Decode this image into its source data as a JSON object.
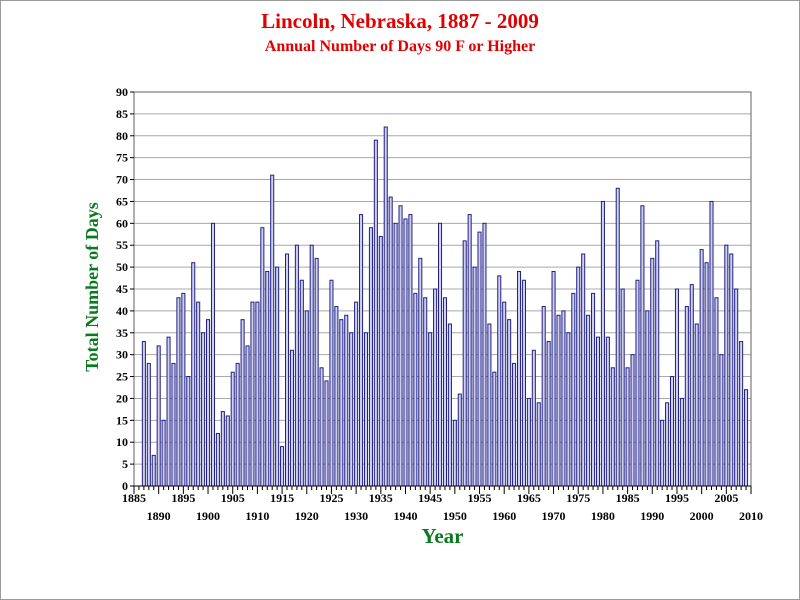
{
  "chart_data": {
    "type": "bar",
    "title": "Lincoln, Nebraska, 1887 - 2009",
    "subtitle": "Annual Number of Days 90 F or Higher",
    "xlabel": "Year",
    "ylabel": "Total Number of Days",
    "xlim": [
      1885,
      2010
    ],
    "ylim": [
      0,
      90
    ],
    "ytick_step": 5,
    "xtick_major": 5,
    "grid": "horizontal",
    "legend": "none",
    "colors": {
      "bar_fill": "#d0d0ec",
      "bar_stroke": "#202088",
      "title": "#e00000",
      "axis_title": "#0a7a1e"
    },
    "years": [
      1887,
      1888,
      1889,
      1890,
      1891,
      1892,
      1893,
      1894,
      1895,
      1896,
      1897,
      1898,
      1899,
      1900,
      1901,
      1902,
      1903,
      1904,
      1905,
      1906,
      1907,
      1908,
      1909,
      1910,
      1911,
      1912,
      1913,
      1914,
      1915,
      1916,
      1917,
      1918,
      1919,
      1920,
      1921,
      1922,
      1923,
      1924,
      1925,
      1926,
      1927,
      1928,
      1929,
      1930,
      1931,
      1932,
      1933,
      1934,
      1935,
      1936,
      1937,
      1938,
      1939,
      1940,
      1941,
      1942,
      1943,
      1944,
      1945,
      1946,
      1947,
      1948,
      1949,
      1950,
      1951,
      1952,
      1953,
      1954,
      1955,
      1956,
      1957,
      1958,
      1959,
      1960,
      1961,
      1962,
      1963,
      1964,
      1965,
      1966,
      1967,
      1968,
      1969,
      1970,
      1971,
      1972,
      1973,
      1974,
      1975,
      1976,
      1977,
      1978,
      1979,
      1980,
      1981,
      1982,
      1983,
      1984,
      1985,
      1986,
      1987,
      1988,
      1989,
      1990,
      1991,
      1992,
      1993,
      1994,
      1995,
      1996,
      1997,
      1998,
      1999,
      2000,
      2001,
      2002,
      2003,
      2004,
      2005,
      2006,
      2007,
      2008,
      2009
    ],
    "values": [
      33,
      28,
      7,
      32,
      15,
      34,
      28,
      43,
      44,
      25,
      51,
      42,
      35,
      38,
      60,
      12,
      17,
      16,
      26,
      28,
      38,
      32,
      42,
      42,
      59,
      49,
      71,
      50,
      9,
      53,
      31,
      55,
      47,
      40,
      55,
      52,
      27,
      24,
      47,
      41,
      38,
      39,
      35,
      42,
      62,
      35,
      59,
      79,
      57,
      82,
      66,
      60,
      64,
      61,
      62,
      44,
      52,
      43,
      35,
      45,
      60,
      43,
      37,
      15,
      21,
      56,
      62,
      50,
      58,
      60,
      37,
      26,
      48,
      42,
      38,
      28,
      49,
      47,
      20,
      31,
      19,
      41,
      33,
      49,
      39,
      40,
      35,
      44,
      50,
      53,
      39,
      44,
      34,
      65,
      34,
      27,
      68,
      45,
      27,
      30,
      47,
      64,
      40,
      52,
      56,
      15,
      19,
      25,
      45,
      20,
      41,
      46,
      37,
      54,
      51,
      65,
      43,
      30,
      55,
      53,
      45,
      33,
      22
    ],
    "yticks": [
      "0",
      "5",
      "10",
      "15",
      "20",
      "25",
      "30",
      "35",
      "40",
      "45",
      "50",
      "55",
      "60",
      "65",
      "70",
      "75",
      "80",
      "85",
      "90"
    ],
    "xticks": [
      "1885",
      "1890",
      "1895",
      "1900",
      "1905",
      "1910",
      "1915",
      "1920",
      "1925",
      "1930",
      "1935",
      "1940",
      "1945",
      "1950",
      "1955",
      "1960",
      "1965",
      "1970",
      "1975",
      "1980",
      "1985",
      "1990",
      "1995",
      "2000",
      "2005",
      "2010"
    ]
  }
}
